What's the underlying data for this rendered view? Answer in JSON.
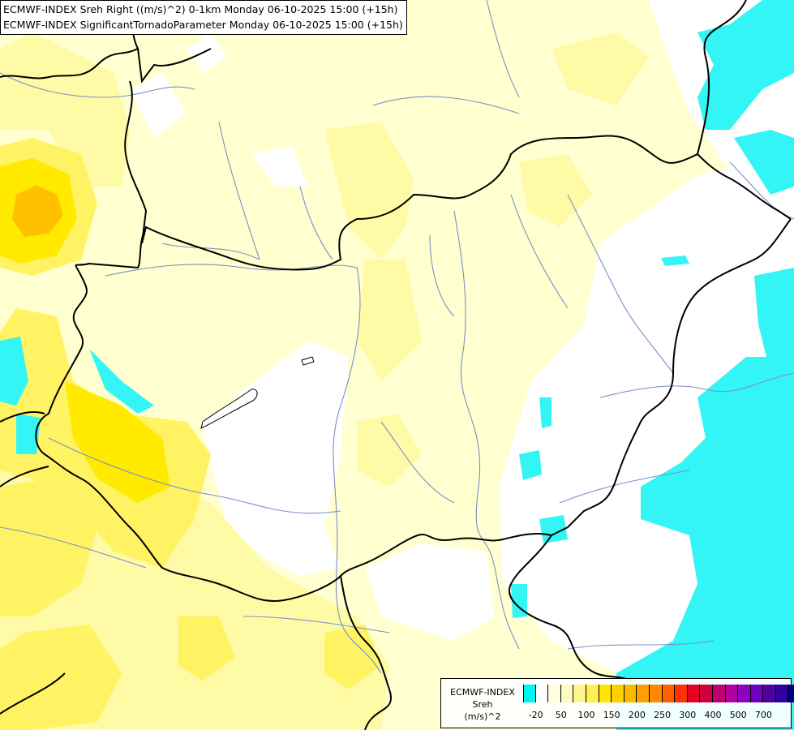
{
  "title": {
    "line1": "ECMWF-INDEX Sreh Right ((m/s)^2) 0-1km Monday 06-10-2025 15:00 (+15h)",
    "line2": "ECMWF-INDEX SignificantTornadoParameter Monday 06-10-2025 15:00 (+15h)"
  },
  "legend": {
    "title1": "ECMWF-INDEX",
    "title2": "Sreh",
    "title3": "(m/s)^2",
    "colors": [
      "#00f4f4",
      "#ffffff",
      "#ffffe0",
      "#fffac0",
      "#fff590",
      "#ffef50",
      "#ffe600",
      "#ffd000",
      "#ffb800",
      "#ffa000",
      "#ff8800",
      "#ff6000",
      "#ff3000",
      "#e80020",
      "#d00040",
      "#c00070",
      "#b000a0",
      "#9000c0",
      "#7000c0",
      "#5000a0",
      "#3000a0",
      "#000080"
    ],
    "tick_labels": [
      "-20",
      "50",
      "100",
      "150",
      "200",
      "250",
      "300",
      "400",
      "500",
      "700"
    ]
  },
  "map_colors": {
    "neg": "#33f5f5",
    "pale": "#ffffcf",
    "light": "#fffaa6",
    "mid": "#fff364",
    "strong": "#ffea00",
    "orange": "#ffc000",
    "border": "#000000",
    "river": "#7a8fc7"
  }
}
